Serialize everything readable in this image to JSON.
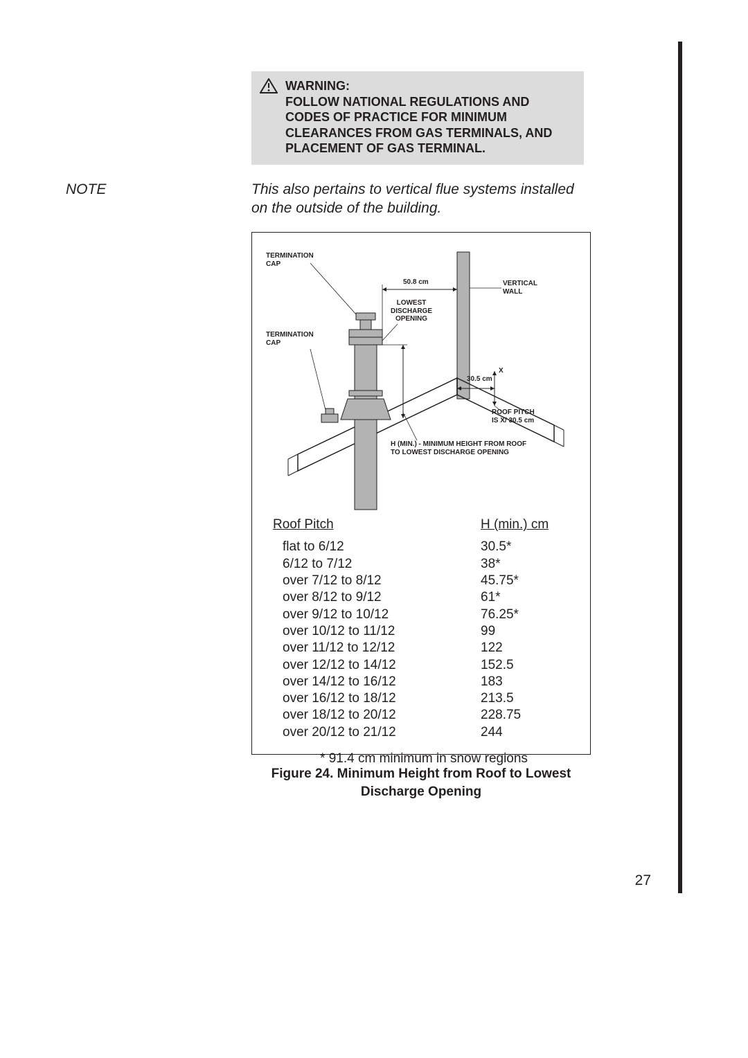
{
  "note_label": "NOTE",
  "warning": {
    "heading": "WARNING:",
    "body": "FOLLOW NATIONAL REGULATIONS AND CODES OF PRACTICE FOR MINIMUM CLEARANCES FROM GAS TERMINALS, AND PLACEMENT OF GAS TERMINAL."
  },
  "note_body": "This also pertains to vertical flue systems installed on the outside of the building.",
  "diagram": {
    "labels": {
      "termination_cap_top": "TERMINATION\nCAP",
      "termination_cap_side": "TERMINATION\nCAP",
      "dim_50_8": "50.8 cm",
      "vertical_wall": "VERTICAL\nWALL",
      "lowest_discharge": "LOWEST\nDISCHARGE\nOPENING",
      "dim_30_5": "30.5 cm",
      "x": "X",
      "roof_pitch": "ROOF PITCH\nIS  X/ 30.5 cm",
      "h_min_note": "H (MIN.) - MINIMUM HEIGHT FROM ROOF\nTO LOWEST DISCHARGE OPENING"
    },
    "colors": {
      "fill": "#b3b3b3",
      "stroke": "#231f20",
      "background": "#ffffff"
    }
  },
  "table": {
    "col1_header": "Roof Pitch",
    "col2_header": "H (min.) cm",
    "rows": [
      {
        "pitch": "flat to 6/12",
        "h": "30.5*"
      },
      {
        "pitch": "6/12 to 7/12",
        "h": "38*"
      },
      {
        "pitch": "over 7/12 to 8/12",
        "h": "45.75*"
      },
      {
        "pitch": "over 8/12 to 9/12",
        "h": "61*"
      },
      {
        "pitch": "over 9/12 to 10/12",
        "h": "76.25*"
      },
      {
        "pitch": "over 10/12 to 11/12",
        "h": "99"
      },
      {
        "pitch": "over 11/12 to 12/12",
        "h": "122"
      },
      {
        "pitch": "over 12/12 to 14/12",
        "h": "152.5"
      },
      {
        "pitch": "over 14/12 to 16/12",
        "h": "183"
      },
      {
        "pitch": "over 16/12 to 18/12",
        "h": "213.5"
      },
      {
        "pitch": "over 18/12 to 20/12",
        "h": "228.75"
      },
      {
        "pitch": "over 20/12 to 21/12",
        "h": "244"
      }
    ],
    "footnote": "* 91.4 cm minimum in snow regions"
  },
  "caption": "Figure 24. Minimum Height from Roof to Lowest Discharge Opening",
  "page_number": "27"
}
